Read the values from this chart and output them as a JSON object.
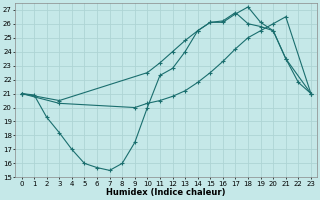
{
  "xlabel": "Humidex (Indice chaleur)",
  "background_color": "#c5e8e8",
  "grid_color": "#aed4d4",
  "line_color": "#1a6e6e",
  "xlim": [
    -0.5,
    23.5
  ],
  "ylim": [
    15,
    27.5
  ],
  "yticks": [
    15,
    16,
    17,
    18,
    19,
    20,
    21,
    22,
    23,
    24,
    25,
    26,
    27
  ],
  "xticks": [
    0,
    1,
    2,
    3,
    4,
    5,
    6,
    7,
    8,
    9,
    10,
    11,
    12,
    13,
    14,
    15,
    16,
    17,
    18,
    19,
    20,
    21,
    22,
    23
  ],
  "line1_x": [
    0,
    1,
    2,
    3,
    4,
    5,
    6,
    7,
    8,
    9,
    10,
    11,
    12,
    13,
    14,
    15,
    16,
    17,
    18,
    19,
    20,
    21,
    22,
    23
  ],
  "line1_y": [
    21.0,
    20.9,
    19.3,
    18.2,
    17.0,
    16.0,
    15.7,
    15.5,
    16.0,
    17.5,
    20.0,
    22.3,
    22.8,
    24.0,
    25.5,
    26.1,
    26.1,
    26.7,
    27.2,
    26.1,
    25.5,
    23.5,
    21.8,
    21.0
  ],
  "line2_x": [
    0,
    3,
    10,
    11,
    12,
    13,
    14,
    15,
    16,
    17,
    18,
    19,
    20,
    21,
    23
  ],
  "line2_y": [
    21.0,
    20.5,
    22.5,
    23.2,
    24.0,
    24.8,
    25.5,
    26.1,
    26.2,
    26.8,
    26.0,
    25.8,
    25.5,
    23.5,
    21.0
  ],
  "line3_x": [
    0,
    3,
    9,
    10,
    11,
    12,
    13,
    14,
    15,
    16,
    17,
    18,
    19,
    20,
    21,
    23
  ],
  "line3_y": [
    21.0,
    20.3,
    20.0,
    20.3,
    20.5,
    20.8,
    21.2,
    21.8,
    22.5,
    23.3,
    24.2,
    25.0,
    25.5,
    26.0,
    26.5,
    21.0
  ]
}
